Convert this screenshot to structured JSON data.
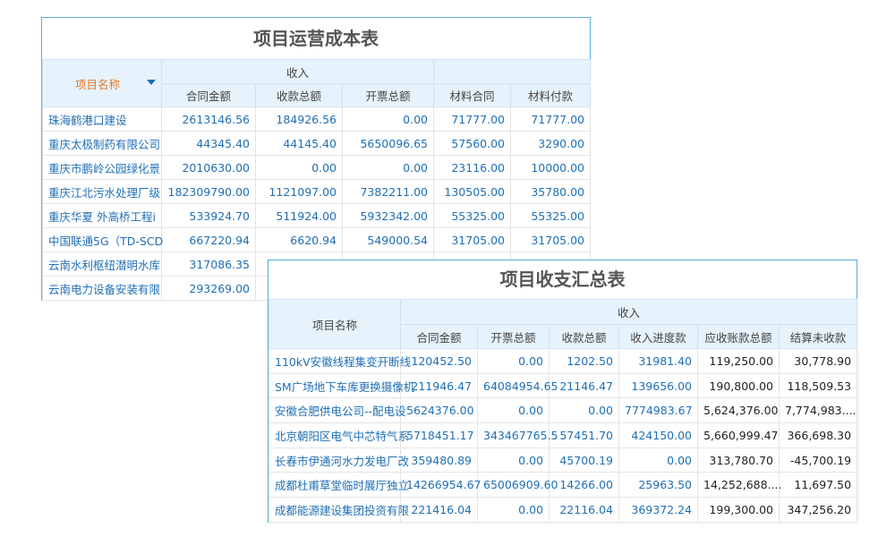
{
  "cost_table": {
    "title": "项目运营成本表",
    "header": {
      "name": "项目名称",
      "group": "收入",
      "columns": [
        "合同金额",
        "收款总额",
        "开票总额",
        "材料合同",
        "材料付款"
      ]
    },
    "rows": [
      [
        "珠海鹤港口建设",
        "2613146.56",
        "184926.56",
        "0.00",
        "71777.00",
        "71777.00"
      ],
      [
        "重庆太极制药有限公司",
        "44345.40",
        "44145.40",
        "5650096.65",
        "57560.00",
        "3290.00"
      ],
      [
        "重庆市鹏岭公园绿化景",
        "2010630.00",
        "0.00",
        "0.00",
        "23116.00",
        "10000.00"
      ],
      [
        "重庆江北污水处理厂级",
        "182309790.00",
        "1121097.00",
        "7382211.00",
        "130505.00",
        "35780.00"
      ],
      [
        "重庆华夏 外高桥工程i",
        "533924.70",
        "511924.00",
        "5932342.00",
        "55325.00",
        "55325.00"
      ],
      [
        "中国联通5G（TD-SCD",
        "667220.94",
        "6620.94",
        "549000.54",
        "31705.00",
        "31705.00"
      ],
      [
        "云南水利枢纽潜明水库",
        "317086.35"
      ],
      [
        "云南电力设备安装有限",
        "293269.00"
      ]
    ]
  },
  "summary_table": {
    "title": "项目收支汇总表",
    "header": {
      "name": "项目名称",
      "group": "收入",
      "columns": [
        "合同金额",
        "开票总额",
        "收款总额",
        "收入进度款",
        "应收账款总额",
        "结算未收款"
      ]
    },
    "rows": [
      [
        "110kV安徽线程集变开断线",
        "120452.50",
        "0.00",
        "1202.50",
        "31981.40",
        "119,250.00",
        "30,778.90"
      ],
      [
        "SM广场地下车库更换摄像机",
        "211946.47",
        "64084954.65",
        "21146.47",
        "139656.00",
        "190,800.00",
        "118,509.53"
      ],
      [
        "安徽合肥供电公司--配电设",
        "5624376.00",
        "0.00",
        "0.00",
        "7774983.67",
        "5,624,376.00",
        "7,774,983...."
      ],
      [
        "北京朝阳区电气中芯特气系",
        "5718451.17",
        "343467765.5",
        "57451.70",
        "424150.00",
        "5,660,999.47",
        "366,698.30"
      ],
      [
        "长春市伊通河水力发电厂改",
        "359480.89",
        "0.00",
        "45700.19",
        "0.00",
        "313,780.70",
        "-45,700.19"
      ],
      [
        "成都杜甫草堂临时展厅独立",
        "14266954.67",
        "65006909.60",
        "14266.00",
        "25963.50",
        "14,252,688....",
        "11,697.50"
      ],
      [
        "成都能源建设集团投资有限",
        "221416.04",
        "0.00",
        "22116.04",
        "369372.24",
        "199,300.00",
        "347,256.20"
      ]
    ]
  }
}
